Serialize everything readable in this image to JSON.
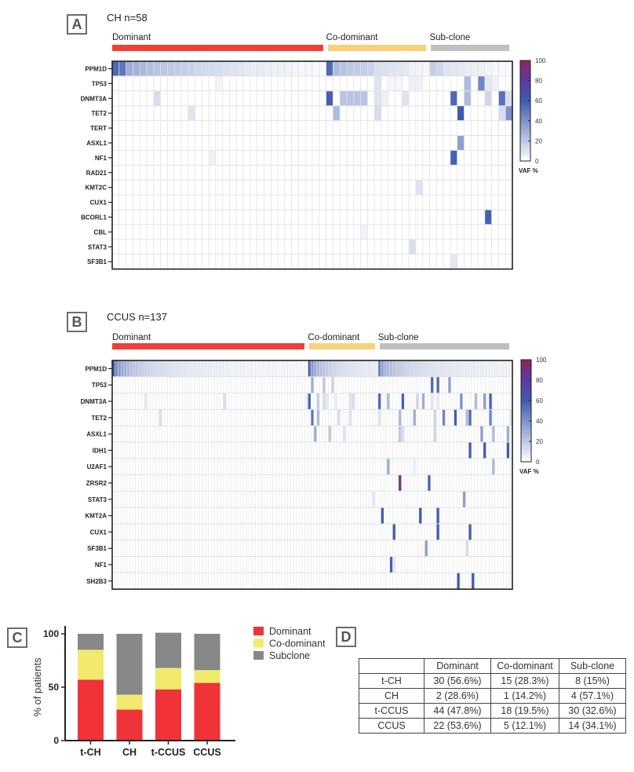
{
  "panels": {
    "A": {
      "letter": "A",
      "title": "CH n=58"
    },
    "B": {
      "letter": "B",
      "title": "CCUS n=137"
    },
    "C": {
      "letter": "C"
    },
    "D": {
      "letter": "D"
    }
  },
  "colors": {
    "dominant_bar": "#ee4136",
    "codominant_bar": "#fbd07a",
    "subclone_bar": "#c0c0c0",
    "bar_dominant": "#ef3338",
    "bar_codominant": "#f2ea6c",
    "bar_subclone": "#878787",
    "vaf_low": "#ffffff",
    "vaf_mid": "#3f5bb0",
    "vaf_high": "#8e2460"
  },
  "chart_data": [
    {
      "id": "heatmap-ch",
      "type": "heatmap",
      "title": "CH n=58",
      "n_patients": 58,
      "segments": [
        {
          "label": "Dominant",
          "start": 0,
          "end": 30
        },
        {
          "label": "Co-dominant",
          "start": 31,
          "end": 45
        },
        {
          "label": "Sub-clone",
          "start": 46,
          "end": 57
        }
      ],
      "genes": [
        "PPM1D",
        "TP53",
        "DNMT3A",
        "TET2",
        "TERT",
        "ASXL1",
        "NF1",
        "RAD21",
        "KMT2C",
        "CUX1",
        "BCORL1",
        "CBL",
        "STAT3",
        "SF3B1"
      ],
      "colorbar": {
        "label": "VAF %",
        "ticks": [
          0,
          20,
          40,
          60,
          80,
          100
        ],
        "range": [
          0,
          100
        ]
      },
      "cells_note": "VAF % per patient column (0-indexed); unlisted = 0",
      "cells": {
        "PPM1D": {
          "0": 55,
          "1": 50,
          "2": 30,
          "3": 28,
          "4": 26,
          "5": 24,
          "6": 22,
          "7": 21,
          "8": 20,
          "9": 19,
          "10": 18,
          "11": 17,
          "12": 15,
          "13": 14,
          "14": 13,
          "15": 12,
          "16": 11,
          "17": 10,
          "18": 9,
          "19": 8,
          "20": 7,
          "21": 7,
          "22": 6,
          "23": 5,
          "24": 5,
          "25": 4,
          "26": 4,
          "27": 3,
          "28": 3,
          "29": 2,
          "30": 2,
          "31": 55,
          "32": 25,
          "33": 22,
          "34": 20,
          "35": 19,
          "36": 18,
          "37": 17,
          "38": 12,
          "39": 11,
          "40": 10,
          "41": 9,
          "42": 8,
          "43": 5,
          "44": 4,
          "45": 3,
          "46": 18,
          "47": 15,
          "48": 10,
          "49": 9,
          "50": 8,
          "51": 7,
          "52": 6,
          "53": 5,
          "54": 4,
          "55": 3,
          "56": 2,
          "57": 2
        },
        "TP53": {
          "15": 4,
          "38": 10,
          "40": 3,
          "41": 3,
          "43": 5,
          "44": 5,
          "51": 25,
          "53": 45,
          "54": 8,
          "55": 5
        },
        "DNMT3A": {
          "6": 12,
          "31": 58,
          "33": 22,
          "34": 22,
          "35": 22,
          "36": 22,
          "38": 10,
          "39": 5,
          "42": 10,
          "49": 55,
          "51": 25,
          "54": 15,
          "56": 52,
          "57": 12
        },
        "TET2": {
          "11": 10,
          "32": 25,
          "38": 12,
          "50": 60,
          "56": 12,
          "57": 40
        },
        "TERT": {},
        "ASXL1": {
          "50": 35
        },
        "NF1": {
          "14": 5,
          "49": 58
        },
        "RAD21": {},
        "KMT2C": {
          "44": 10
        },
        "CUX1": {},
        "BCORL1": {
          "54": 58
        },
        "CBL": {
          "36": 5
        },
        "STAT3": {
          "43": 12
        },
        "SF3B1": {
          "49": 8
        }
      }
    },
    {
      "id": "heatmap-ccus",
      "type": "heatmap",
      "title": "CCUS n=137",
      "n_patients": 137,
      "segments": [
        {
          "label": "Dominant",
          "start": 0,
          "end": 66
        },
        {
          "label": "Co-dominant",
          "start": 67,
          "end": 90
        },
        {
          "label": "Sub-clone",
          "start": 91,
          "end": 136
        }
      ],
      "genes": [
        "PPM1D",
        "TP53",
        "DNMT3A",
        "TET2",
        "ASXL1",
        "IDH1",
        "U2AF1",
        "ZRSR2",
        "STAT3",
        "KMT2A",
        "CUX1",
        "SF3B1",
        "NF1",
        "SH2B3"
      ],
      "colorbar": {
        "label": "VAF %",
        "ticks": [
          0,
          20,
          40,
          60,
          80,
          100
        ],
        "range": [
          0,
          100
        ]
      },
      "cells_note": "VAF % per patient column (0-indexed); PPM1D values decay within each segment; unlisted = 0",
      "ppm1d_gradient": [
        {
          "start": 0,
          "end": 66,
          "from": 60,
          "to": 2
        },
        {
          "start": 67,
          "end": 90,
          "from": 55,
          "to": 6
        },
        {
          "start": 91,
          "end": 136,
          "from": 45,
          "to": 4
        }
      ],
      "cells": {
        "TP53": {
          "68": 30,
          "72": 20,
          "75": 15,
          "109": 55,
          "111": 55,
          "115": 35
        },
        "DNMT3A": {
          "11": 8,
          "38": 12,
          "66": 5,
          "67": 58,
          "70": 18,
          "72": 12,
          "73": 8,
          "76": 6,
          "81": 10,
          "82": 12,
          "91": 55,
          "94": 25,
          "99": 58,
          "104": 15,
          "106": 30,
          "109": 8,
          "111": 6,
          "119": 40,
          "124": 25,
          "127": 35,
          "129": 58
        },
        "TET2": {
          "16": 12,
          "68": 50,
          "70": 25,
          "77": 12,
          "81": 10,
          "91": 10,
          "98": 25,
          "103": 30,
          "110": 15,
          "113": 45,
          "117": 60,
          "121": 25,
          "122": 55,
          "129": 45,
          "136": 10
        },
        "ASXL1": {
          "69": 30,
          "74": 20,
          "79": 10,
          "98": 20,
          "99": 12,
          "110": 15,
          "126": 35,
          "130": 25,
          "135": 30
        },
        "IDH1": {
          "122": 60,
          "127": 60,
          "135": 60
        },
        "U2AF1": {
          "94": 30,
          "103": 5,
          "130": 25
        },
        "ZRSR2": {
          "98": 85,
          "108": 58
        },
        "STAT3": {
          "89": 8,
          "120": 35
        },
        "KMT2A": {
          "92": 60,
          "105": 60,
          "111": 60
        },
        "CUX1": {
          "96": 60,
          "111": 60,
          "122": 60
        },
        "SF3B1": {
          "107": 35,
          "121": 12
        },
        "NF1": {
          "95": 58,
          "96": 8
        },
        "SH2B3": {
          "118": 60,
          "123": 60
        }
      }
    },
    {
      "id": "stacked-bar",
      "type": "bar",
      "stacked": true,
      "categories": [
        "t-CH",
        "CH",
        "t-CCUS",
        "CCUS"
      ],
      "series": [
        {
          "name": "Dominant",
          "values": [
            57,
            29,
            48,
            54
          ]
        },
        {
          "name": "Co-dominant",
          "values": [
            28,
            14,
            20,
            12
          ]
        },
        {
          "name": "Subclone",
          "values": [
            15,
            57,
            33,
            34
          ]
        }
      ],
      "ylabel": "% of patients",
      "xlabel": "",
      "ylim": [
        0,
        100
      ],
      "yticks": [
        0,
        50,
        100
      ],
      "legend": "right"
    },
    {
      "id": "summary-table",
      "type": "table",
      "columns": [
        "",
        "Dominant",
        "Co-dominant",
        "Sub-clone"
      ],
      "rows": [
        [
          "t-CH",
          "30 (56.6%)",
          "15 (28.3%)",
          "8 (15%)"
        ],
        [
          "CH",
          "2 (28.6%)",
          "1 (14.2%)",
          "4 (57.1%)"
        ],
        [
          "t-CCUS",
          "44 (47.8%)",
          "18 (19.5%)",
          "30 (32.6%)"
        ],
        [
          "CCUS",
          "22 (53.6%)",
          "5 (12.1%)",
          "14 (34.1%)"
        ]
      ]
    }
  ]
}
